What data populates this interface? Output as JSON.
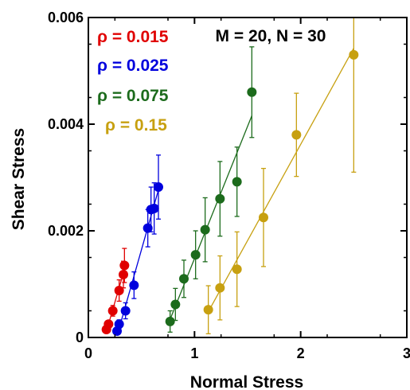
{
  "chart_data": {
    "type": "scatter",
    "title": "",
    "annotation": "M = 20, N = 30",
    "xlabel": "Normal Stress",
    "ylabel": "Shear Stress",
    "xlim": [
      0,
      3
    ],
    "ylim": [
      0,
      0.006
    ],
    "x_ticks": [
      "0",
      "1",
      "2",
      "3"
    ],
    "y_ticks": [
      "0",
      "0.002",
      "0.004",
      "0.006"
    ],
    "grid": false,
    "legend_position": "top-left",
    "series": [
      {
        "name": "ρ = 0.015",
        "color": "#e00000",
        "fit_line": true,
        "points": [
          {
            "x": 0.17,
            "y": 0.00015,
            "err": 5e-05
          },
          {
            "x": 0.19,
            "y": 0.00025,
            "err": 6e-05
          },
          {
            "x": 0.23,
            "y": 0.0005,
            "err": 0.0001
          },
          {
            "x": 0.29,
            "y": 0.00088,
            "err": 0.0002
          },
          {
            "x": 0.33,
            "y": 0.00118,
            "err": 0.00025
          },
          {
            "x": 0.34,
            "y": 0.00135,
            "err": 0.00032
          }
        ]
      },
      {
        "name": "ρ = 0.025",
        "color": "#0000dd",
        "fit_line": true,
        "points": [
          {
            "x": 0.27,
            "y": 0.00012,
            "err": 6e-05
          },
          {
            "x": 0.29,
            "y": 0.00025,
            "err": 8e-05
          },
          {
            "x": 0.35,
            "y": 0.0005,
            "err": 0.00015
          },
          {
            "x": 0.43,
            "y": 0.00098,
            "err": 0.00025
          },
          {
            "x": 0.56,
            "y": 0.00205,
            "err": 0.00035
          },
          {
            "x": 0.59,
            "y": 0.0024,
            "err": 0.00042
          },
          {
            "x": 0.62,
            "y": 0.00242,
            "err": 0.00048
          },
          {
            "x": 0.66,
            "y": 0.00282,
            "err": 0.0006
          }
        ]
      },
      {
        "name": "ρ = 0.075",
        "color": "#1c6b1c",
        "fit_line": true,
        "points": [
          {
            "x": 0.77,
            "y": 0.0003,
            "err": 0.0002
          },
          {
            "x": 0.82,
            "y": 0.00062,
            "err": 0.0003
          },
          {
            "x": 0.9,
            "y": 0.0011,
            "err": 0.00035
          },
          {
            "x": 1.01,
            "y": 0.00155,
            "err": 0.00045
          },
          {
            "x": 1.1,
            "y": 0.00202,
            "err": 0.0006
          },
          {
            "x": 1.24,
            "y": 0.0026,
            "err": 0.0007
          },
          {
            "x": 1.4,
            "y": 0.00292,
            "err": 0.00065
          },
          {
            "x": 1.54,
            "y": 0.0046,
            "err": 0.00085
          }
        ]
      },
      {
        "name": "ρ = 0.15",
        "color": "#c7a010",
        "fit_line": true,
        "points": [
          {
            "x": 1.13,
            "y": 0.00052,
            "err": 0.00045
          },
          {
            "x": 1.24,
            "y": 0.00093,
            "err": 0.0006
          },
          {
            "x": 1.4,
            "y": 0.00128,
            "err": 0.0007
          },
          {
            "x": 1.65,
            "y": 0.00225,
            "err": 0.00092
          },
          {
            "x": 1.96,
            "y": 0.0038,
            "err": 0.00078
          },
          {
            "x": 2.5,
            "y": 0.0053,
            "err": 0.0022
          }
        ]
      }
    ]
  }
}
